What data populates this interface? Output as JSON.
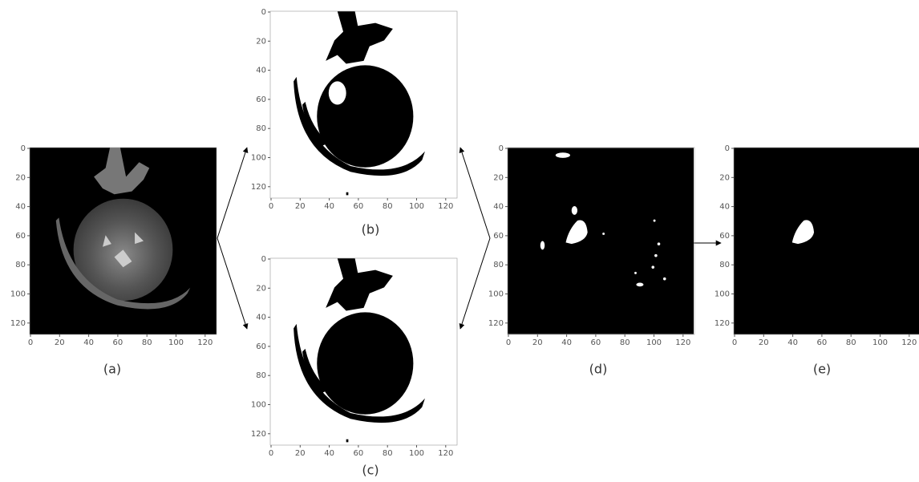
{
  "panels": [
    {
      "caption": "(a)",
      "xticks": [
        0,
        20,
        40,
        60,
        80,
        100,
        120
      ],
      "yticks": [
        0,
        20,
        40,
        60,
        80,
        100,
        120
      ]
    },
    {
      "caption": "(b)",
      "xticks": [
        0,
        20,
        40,
        60,
        80,
        100,
        120
      ],
      "yticks": [
        0,
        20,
        40,
        60,
        80,
        100,
        120
      ]
    },
    {
      "caption": "(c)",
      "xticks": [
        0,
        20,
        40,
        60,
        80,
        100,
        120
      ],
      "yticks": [
        0,
        20,
        40,
        60,
        80,
        100,
        120
      ]
    },
    {
      "caption": "(d)",
      "xticks": [
        0,
        20,
        40,
        60,
        80,
        100,
        120
      ],
      "yticks": [
        0,
        20,
        40,
        60,
        80,
        100,
        120
      ]
    },
    {
      "caption": "(e)",
      "xticks": [
        0,
        20,
        40,
        60,
        80,
        100,
        120
      ],
      "yticks": [
        0,
        20,
        40,
        60,
        80,
        100,
        120
      ]
    }
  ]
}
